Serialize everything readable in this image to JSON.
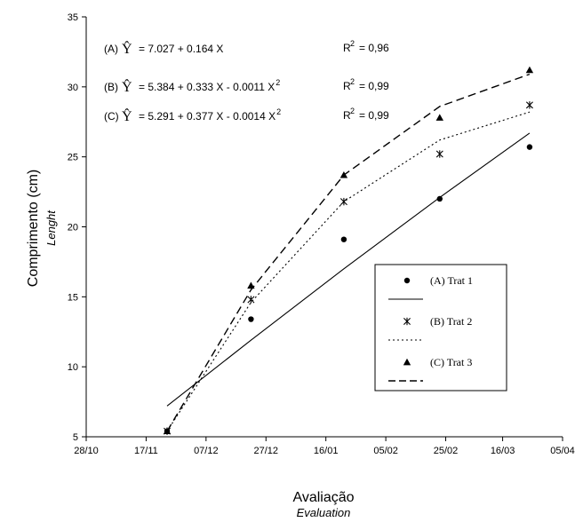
{
  "chart_data": {
    "type": "scatter",
    "xlabel": "Avaliação",
    "xlabel_sub": "Evaluation",
    "ylabel": "Comprimento (cm)",
    "ylabel_sub": "Lenght",
    "ylim": [
      5,
      35
    ],
    "yticks": [
      5,
      10,
      15,
      20,
      25,
      30,
      35
    ],
    "xlim": [
      0,
      159
    ],
    "xticks": [
      {
        "label": "28/10",
        "value": 0
      },
      {
        "label": "17/11",
        "value": 20
      },
      {
        "label": "07/12",
        "value": 40
      },
      {
        "label": "27/12",
        "value": 60
      },
      {
        "label": "16/01",
        "value": 80
      },
      {
        "label": "05/02",
        "value": 100
      },
      {
        "label": "25/02",
        "value": 120
      },
      {
        "label": "16/03",
        "value": 139
      },
      {
        "label": "05/04",
        "value": 159
      }
    ],
    "series": [
      {
        "name": "(A) Trat 1",
        "marker": "circle",
        "line_style": "solid",
        "x": [
          27,
          55,
          86,
          118,
          148
        ],
        "y": [
          5.4,
          13.4,
          19.1,
          22.0,
          25.7
        ],
        "fit_y": [
          7.2,
          11.9,
          17.0,
          22.1,
          26.7
        ]
      },
      {
        "name": "(B) Trat 2",
        "marker": "star",
        "line_style": "dotted",
        "x": [
          27,
          55,
          86,
          118,
          148
        ],
        "y": [
          5.4,
          14.8,
          21.8,
          25.2,
          28.7
        ],
        "fit_y": [
          5.4,
          14.6,
          21.8,
          26.2,
          28.2
        ]
      },
      {
        "name": "(C) Trat 3",
        "marker": "triangle",
        "line_style": "dashed",
        "x": [
          27,
          55,
          86,
          118,
          148
        ],
        "y": [
          5.4,
          15.8,
          23.7,
          27.8,
          31.2
        ],
        "fit_y": [
          5.4,
          15.5,
          23.7,
          28.6,
          30.9
        ]
      }
    ],
    "annotations": [
      {
        "id": "A",
        "prefix": "(A)",
        "yhat": "Ŷ",
        "eq_main": "=  7.027 + 0.164 X",
        "eq_sup": "",
        "r2_label": "R",
        "r2_sup": "2",
        "r2_value": "= 0,96"
      },
      {
        "id": "B",
        "prefix": "(B)",
        "yhat": "Ŷ",
        "eq_main": "=  5.384 + 0.333 X - 0.0011 X",
        "eq_sup": "2",
        "r2_label": "R",
        "r2_sup": "2",
        "r2_value": "= 0,99"
      },
      {
        "id": "C",
        "prefix": "(C)",
        "yhat": "Ŷ",
        "eq_main": "=  5.291 + 0.377 X - 0.0014  X",
        "eq_sup": "2",
        "r2_label": "R",
        "r2_sup": "2",
        "r2_value": "= 0,99"
      }
    ],
    "legend": {
      "position": "right-middle"
    },
    "grid": false,
    "colors": {
      "ink": "#000000",
      "background": "#ffffff"
    }
  }
}
